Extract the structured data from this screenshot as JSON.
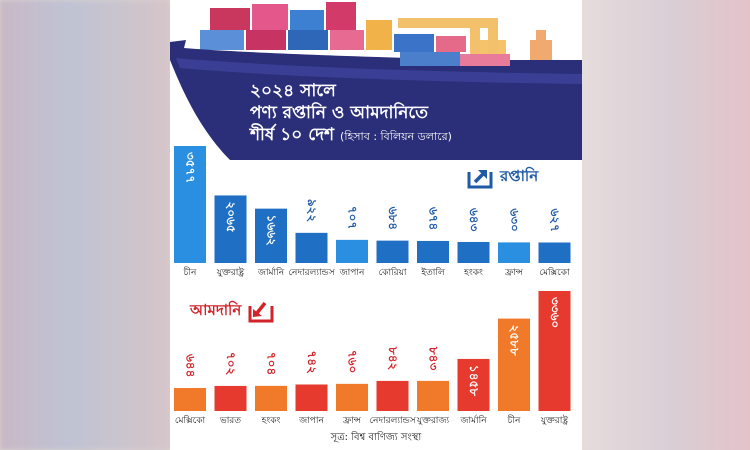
{
  "title": {
    "line1": "২০২৪ সালে",
    "line2": "পণ্য রপ্তানি ও আমদানিতে",
    "line3": "শীর্ষ ১০ দেশ",
    "unit": "(হিসাব : বিলিয়ন ডলারে)"
  },
  "exports": {
    "heading": "রপ্তানি",
    "icon": "export-box-icon",
    "color": "#1f74c9"
  },
  "imports": {
    "heading": "আমদানি",
    "icon": "import-box-icon",
    "color": "#e63a2e"
  },
  "source": "সূত্র: বিশ্ব বাণিজ্য সংস্থা",
  "chart_data": [
    {
      "type": "bar",
      "name": "রপ্তানি",
      "categories": [
        "চীন",
        "যুক্তরাষ্ট্র",
        "জার্মানি",
        "নেদারল্যান্ডস",
        "জাপান",
        "কোরিয়া",
        "ইতালি",
        "হংকং",
        "ফ্রান্স",
        "মেক্সিকো"
      ],
      "values": [
        3577,
        2065,
        1662,
        922,
        707,
        684,
        674,
        643,
        630,
        627
      ],
      "value_labels": [
        "৩৫৭৭",
        "২০৬৫",
        "১৬৬২",
        "৯২২",
        "৭০৭",
        "৬৮৪",
        "৬৭৪",
        "৬৪৩",
        "৬৩০",
        "৬২৭"
      ],
      "colors": [
        "#2a8fe0",
        "#1f6fc4",
        "#1f6fc4",
        "#1f6fc4",
        "#2a8fe0",
        "#1f6fc4",
        "#1f6fc4",
        "#1f6fc4",
        "#2a8fe0",
        "#1f6fc4"
      ]
    },
    {
      "type": "bar",
      "name": "আমদানি",
      "categories": [
        "মেক্সিকো",
        "ভারত",
        "হংকং",
        "জাপান",
        "ফ্রান্স",
        "নেদারল্যান্ডস",
        "যুক্তরাজ্য",
        "জার্মানি",
        "চীন",
        "যুক্তরাষ্ট্র"
      ],
      "values": [
        644,
        702,
        704,
        742,
        760,
        842,
        843,
        1458,
        2588,
        3360
      ],
      "value_labels": [
        "৬৪৪",
        "৭০২",
        "৭০৪",
        "৭৪২",
        "৭৬০",
        "৮৪২",
        "৮৪৩",
        "১৪৫৮",
        "২৫৮৮",
        "৩৩৬০"
      ],
      "colors": [
        "#f07a2a",
        "#e63a2e",
        "#f07a2a",
        "#e63a2e",
        "#f07a2a",
        "#e63a2e",
        "#f07a2a",
        "#e63a2e",
        "#f07a2a",
        "#e63a2e"
      ]
    }
  ]
}
